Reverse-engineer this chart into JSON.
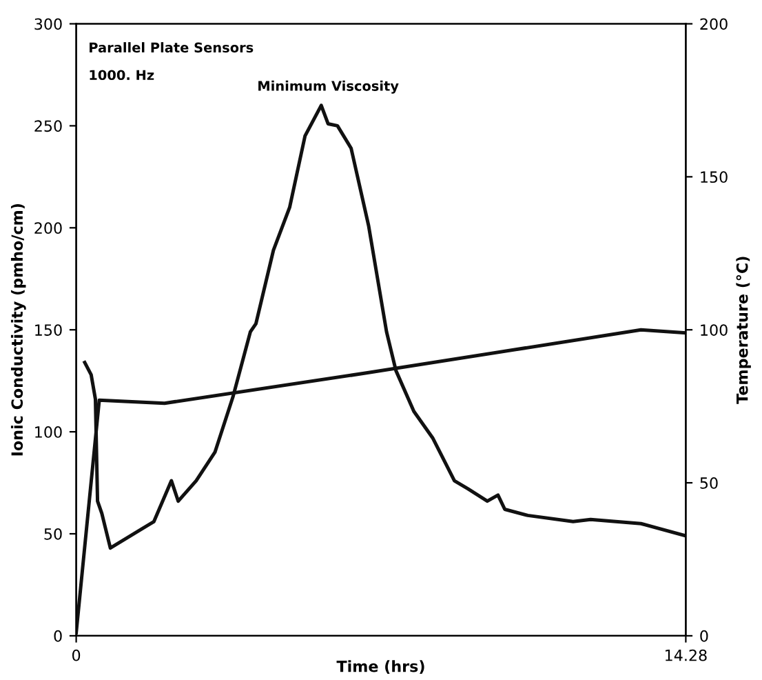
{
  "chart_data": {
    "type": "line",
    "xlabel": "Time (hrs)",
    "ylabel": "Ionic Conductivity (pmho/cm)",
    "y2label": "Temperature (°C)",
    "annotations": [
      "Parallel Plate Sensors",
      "1000. Hz",
      {
        "text": "Minimum Viscosity",
        "x": 5.9,
        "y": 262
      }
    ],
    "xlim": [
      0,
      14.28
    ],
    "xticks": [
      0,
      14.28
    ],
    "ylim": [
      0,
      300
    ],
    "yticks": [
      0,
      50,
      100,
      150,
      200,
      250,
      300
    ],
    "y2lim": [
      0,
      200
    ],
    "y2ticks": [
      0,
      50,
      100,
      150,
      200
    ],
    "grid": false,
    "legend": false,
    "marker": "none",
    "line_style": "solid",
    "series": [
      {
        "color": "#111111",
        "x": [
          0.2,
          0.35,
          0.45,
          0.5,
          0.6,
          0.8,
          1.82,
          2.23,
          2.39,
          2.81,
          3.25,
          3.67,
          4.08,
          4.21,
          4.62,
          5.0,
          5.36,
          5.74,
          5.9,
          6.12,
          6.44,
          6.85,
          7.27,
          7.49,
          7.91,
          8.35,
          8.86,
          9.18,
          9.63,
          9.88,
          10.04,
          10.58,
          11.64,
          12.05,
          13.23,
          14.28
        ],
        "values": [
          134,
          128,
          116,
          66,
          60,
          43,
          56,
          76,
          66,
          76,
          90,
          117,
          149,
          153,
          189,
          210,
          245,
          260,
          251,
          250,
          239,
          201,
          149,
          130,
          110,
          97,
          76,
          72,
          66,
          69,
          62,
          59,
          56,
          57,
          55,
          49
        ]
      },
      {
        "color": "#111111",
        "axis": "y2",
        "x": [
          0,
          0.54,
          2.07,
          6.85,
          13.23,
          14.28
        ],
        "values": [
          1,
          77,
          76,
          86,
          100,
          99
        ]
      }
    ]
  }
}
